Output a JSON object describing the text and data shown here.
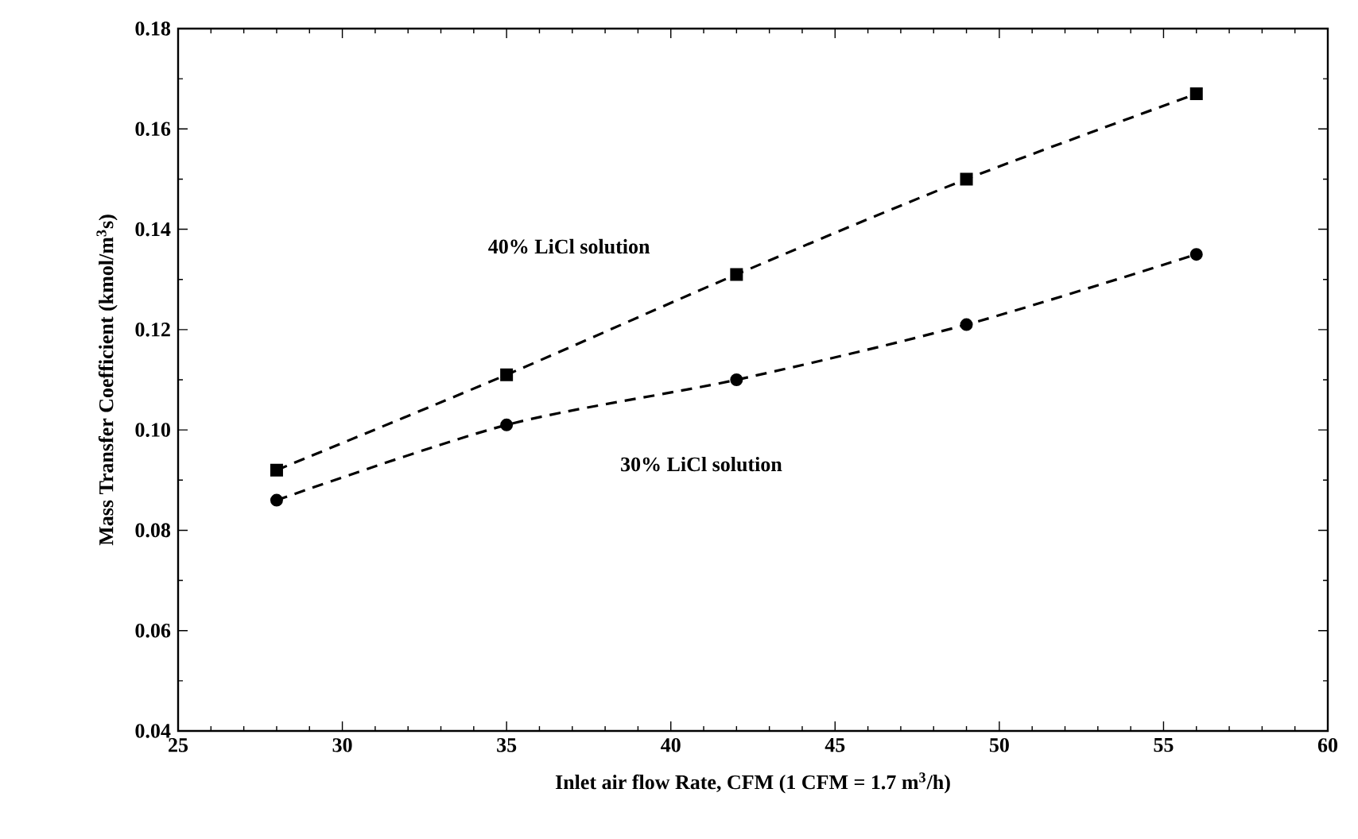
{
  "chart_data": {
    "type": "line",
    "xlabel": "Inlet air flow Rate, CFM (1 CFM = 1.7 m$^{3}$/h)",
    "ylabel": "Mass Transfer Coefficient (kmol/m$^{3}$s)",
    "x": [
      28,
      35,
      42,
      49,
      56
    ],
    "series": [
      {
        "name": "40% LiCl solution",
        "color": "#000000",
        "marker": "square",
        "values": [
          0.092,
          0.111,
          0.131,
          0.15,
          0.167
        ]
      },
      {
        "name": "30% LiCl solution",
        "color": "#000000",
        "marker": "circle",
        "values": [
          0.086,
          0.101,
          0.11,
          0.121,
          0.135
        ]
      }
    ],
    "line_style": "dashed",
    "xlim": [
      25,
      60
    ],
    "ylim": [
      0.04,
      0.18
    ],
    "xticks": [
      25,
      30,
      35,
      40,
      45,
      50,
      55,
      60
    ],
    "yticks": [
      0.04,
      0.06,
      0.08,
      {
        "value": 0.1,
        "label": "0.10"
      },
      0.12,
      0.14,
      0.16,
      0.18
    ]
  }
}
